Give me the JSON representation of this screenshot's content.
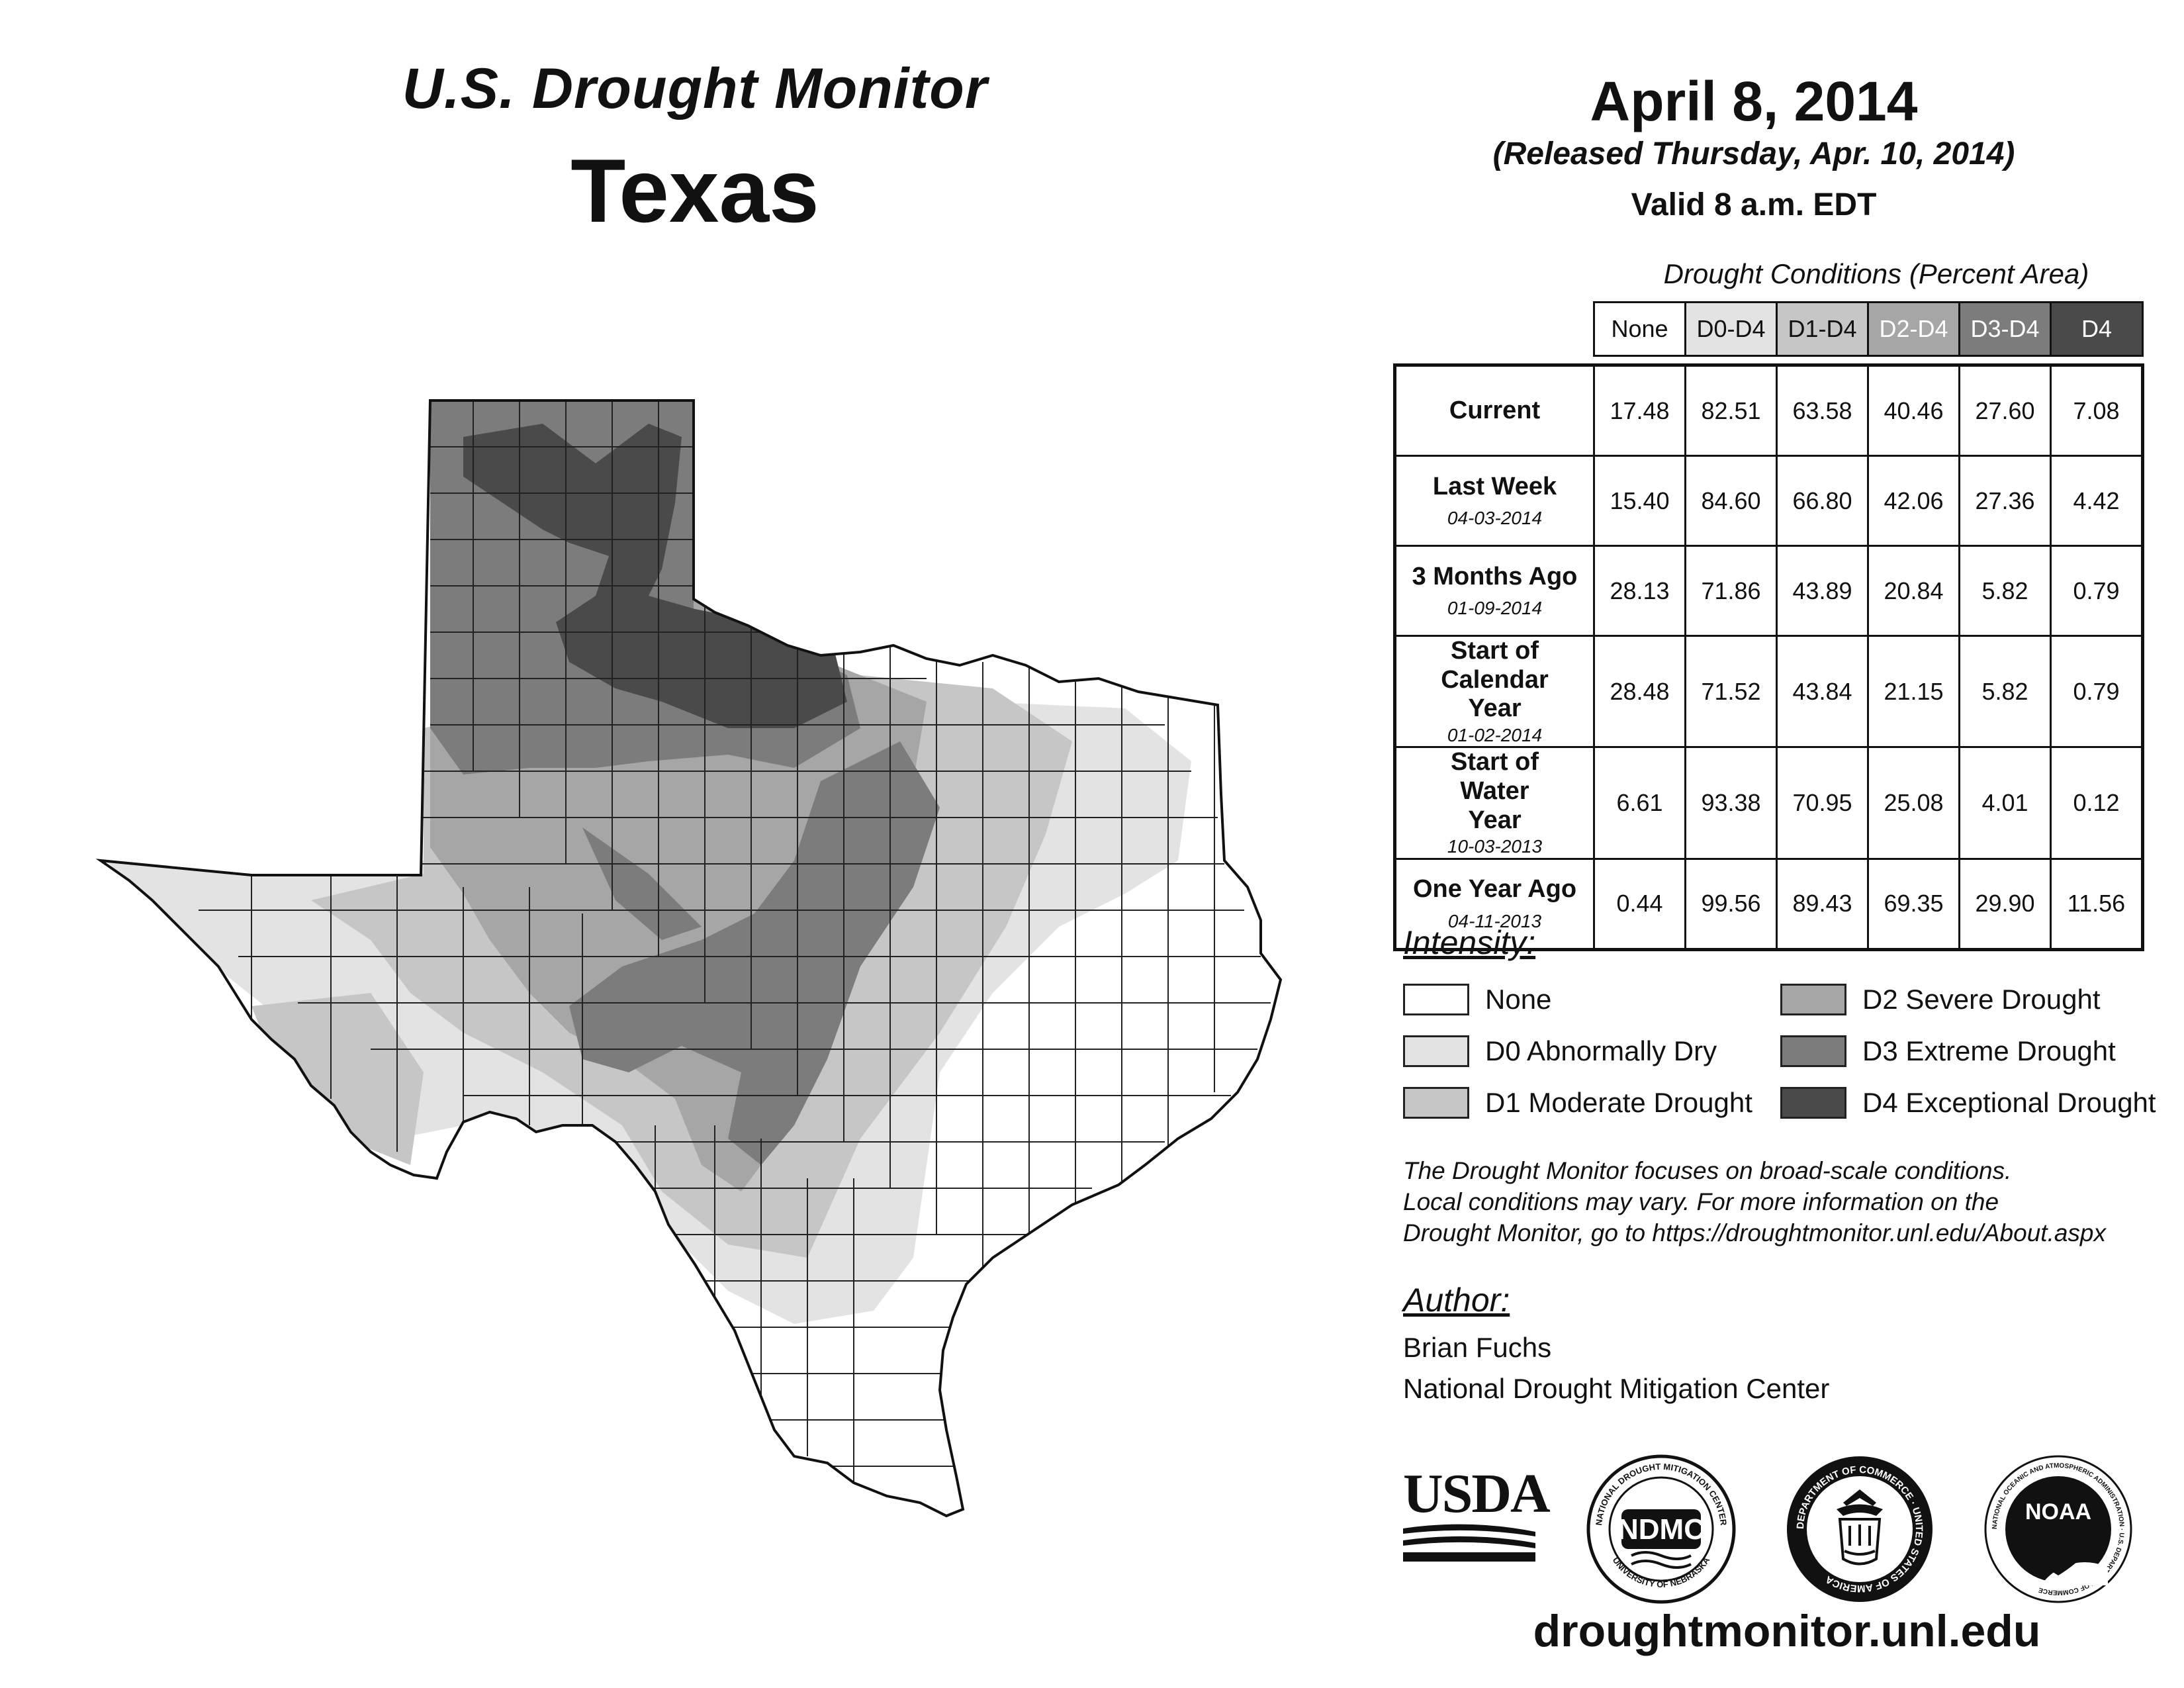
{
  "header": {
    "title": "U.S. Drought Monitor",
    "state": "Texas",
    "date": "April 8, 2014",
    "released": "(Released Thursday, Apr. 10, 2014)",
    "valid": "Valid 8 a.m. EDT"
  },
  "table": {
    "caption": "Drought Conditions (Percent Area)",
    "columns": [
      "None",
      "D0-D4",
      "D1-D4",
      "D2-D4",
      "D3-D4",
      "D4"
    ],
    "rows": [
      {
        "label": "Current",
        "date": "",
        "values": [
          "17.48",
          "82.51",
          "63.58",
          "40.46",
          "27.60",
          "7.08"
        ]
      },
      {
        "label": "Last Week",
        "date": "04-03-2014",
        "values": [
          "15.40",
          "84.60",
          "66.80",
          "42.06",
          "27.36",
          "4.42"
        ]
      },
      {
        "label": "3 Months Ago",
        "date": "01-09-2014",
        "values": [
          "28.13",
          "71.86",
          "43.89",
          "20.84",
          "5.82",
          "0.79"
        ]
      },
      {
        "label": "Start of Calendar Year",
        "date": "01-02-2014",
        "values": [
          "28.48",
          "71.52",
          "43.84",
          "21.15",
          "5.82",
          "0.79"
        ]
      },
      {
        "label": "Start of Water Year",
        "date": "10-03-2013",
        "values": [
          "6.61",
          "93.38",
          "70.95",
          "25.08",
          "4.01",
          "0.12"
        ]
      },
      {
        "label": "One Year Ago",
        "date": "04-11-2013",
        "values": [
          "0.44",
          "99.56",
          "89.43",
          "69.35",
          "29.90",
          "11.56"
        ]
      }
    ]
  },
  "intensity": {
    "heading": "Intensity:",
    "items": [
      {
        "label": "None",
        "color": "#ffffff"
      },
      {
        "label": "D0 Abnormally Dry",
        "color": "#e3e3e3"
      },
      {
        "label": "D1 Moderate Drought",
        "color": "#c6c6c6"
      },
      {
        "label": "D2 Severe Drought",
        "color": "#a6a6a6"
      },
      {
        "label": "D3 Extreme Drought",
        "color": "#7c7c7c"
      },
      {
        "label": "D4 Exceptional Drought",
        "color": "#4a4a4a"
      }
    ]
  },
  "note": {
    "line1": "The Drought Monitor focuses on broad-scale conditions.",
    "line2": "Local conditions may vary. For more information on the",
    "line3": "Drought Monitor, go to https://droughtmonitor.unl.edu/About.aspx"
  },
  "author": {
    "heading": "Author:",
    "name": "Brian Fuchs",
    "org": "National Drought Mitigation Center"
  },
  "logos": {
    "usda": "USDA",
    "ndmc": "NDMC",
    "ndmc_ring_top": "NATIONAL DROUGHT MITIGATION CENTER",
    "ndmc_ring_bottom": "UNIVERSITY OF NEBRASKA",
    "commerce_ring": "DEPARTMENT OF COMMERCE · UNITED STATES OF AMERICA",
    "noaa": "NOAA",
    "noaa_ring": "NATIONAL OCEANIC AND ATMOSPHERIC ADMINISTRATION · U.S. DEPARTMENT OF COMMERCE"
  },
  "website": "droughtmonitor.unl.edu"
}
